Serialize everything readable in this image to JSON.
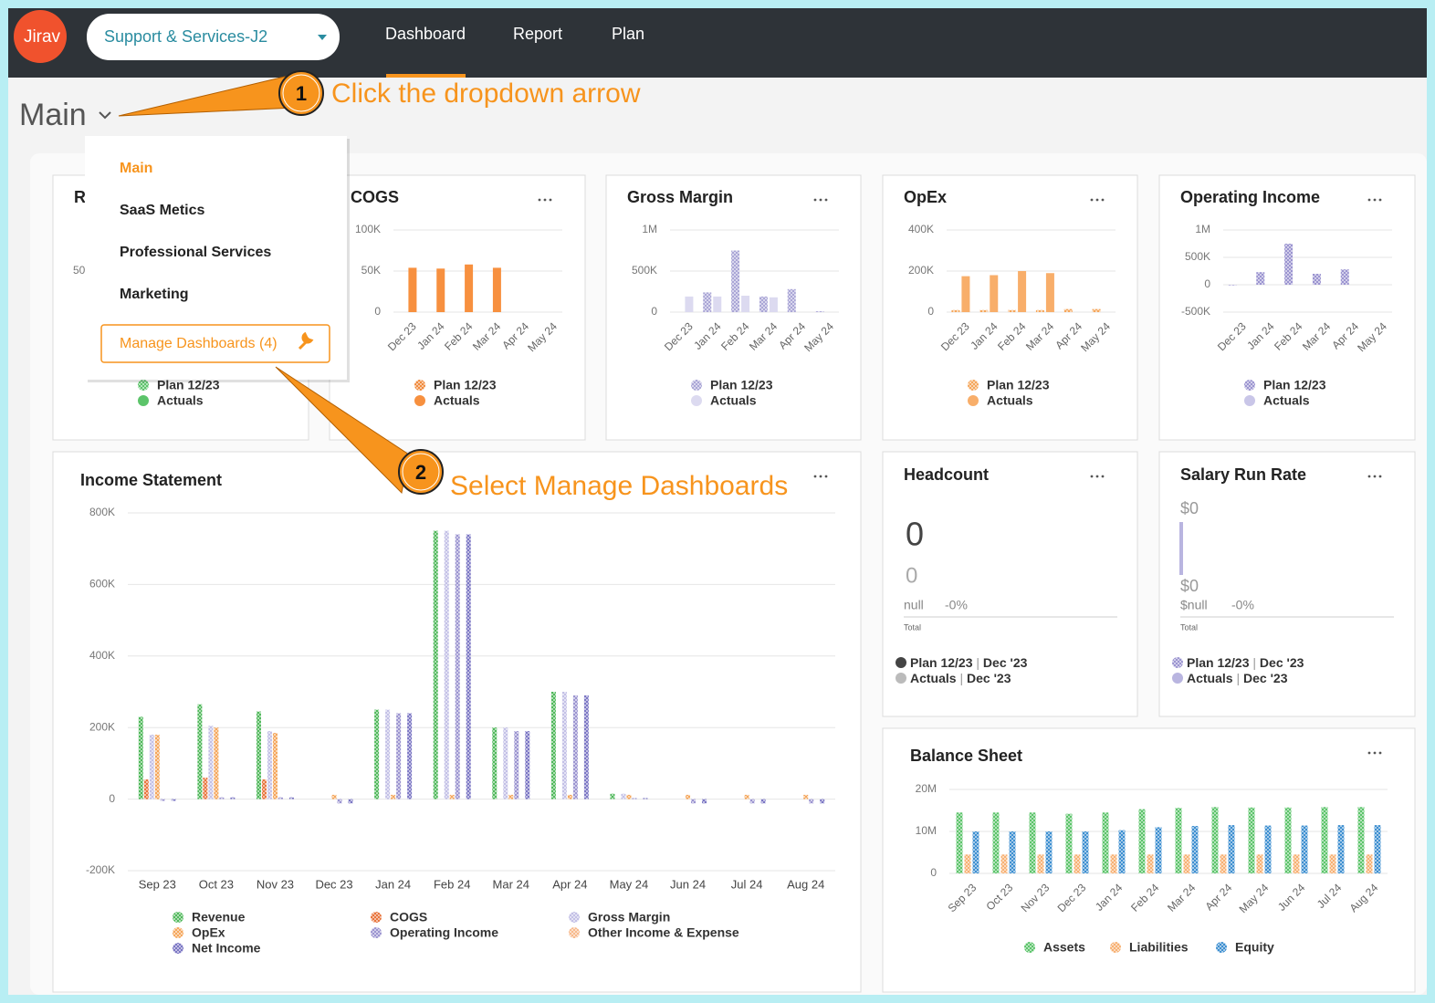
{
  "header": {
    "logo": "Jirav",
    "company": "Support & Services-J2",
    "nav": [
      "Dashboard",
      "Report",
      "Plan"
    ]
  },
  "page_title": "Main",
  "annotations": [
    {
      "number": "1",
      "text": "Click the dropdown arrow"
    },
    {
      "number": "2",
      "text": "Select Manage Dashboards"
    }
  ],
  "menu": {
    "items": [
      "Main",
      "SaaS Metics",
      "Professional Services",
      "Marketing"
    ],
    "manage": "Manage Dashboards (4)"
  },
  "revenue_card": {
    "title": "R",
    "tick": "50",
    "legend": [
      "Plan 12/23",
      "Actuals"
    ]
  },
  "headcount": {
    "title": "Headcount",
    "value": "0",
    "compare": "0",
    "prior": "null",
    "change": "-0%",
    "total": "Total",
    "separator": "|",
    "legend": [
      {
        "name": "Plan 12/23",
        "period": "Dec '23"
      },
      {
        "name": "Actuals",
        "period": "Dec '23"
      }
    ]
  },
  "salary": {
    "title": "Salary Run Rate",
    "value": "$0",
    "compare": "$0",
    "prior": "$null",
    "change": "-0%",
    "total": "Total",
    "separator": "|",
    "legend": [
      {
        "name": "Plan 12/23",
        "period": "Dec '23"
      },
      {
        "name": "Actuals",
        "period": "Dec '23"
      }
    ]
  },
  "chart_data": [
    {
      "type": "bar",
      "title": "COGS",
      "categories": [
        "Dec 23",
        "Jan 24",
        "Feb 24",
        "Mar 24",
        "Apr 24",
        "May 24"
      ],
      "series": [
        {
          "name": "Plan 12/23",
          "color": "#f08a3c",
          "pattern": "hatch",
          "values": [
            null,
            null,
            null,
            null,
            null,
            null
          ]
        },
        {
          "name": "Actuals",
          "color": "#f7903f",
          "values": [
            54000,
            53000,
            58000,
            54000,
            null,
            null
          ]
        }
      ],
      "ylim": [
        0,
        100000
      ],
      "yticks": [
        0,
        {
          "value": 50000,
          "label": "50K"
        },
        {
          "value": 100000,
          "label": "100K"
        }
      ],
      "grid": true,
      "rotate_labels": true
    },
    {
      "type": "bar",
      "title": "Gross Margin",
      "categories": [
        "Dec 23",
        "Jan 24",
        "Feb 24",
        "Mar 24",
        "Apr 24",
        "May 24"
      ],
      "series": [
        {
          "name": "Plan 12/23",
          "color": "#aaa6d6",
          "pattern": "hatch",
          "values": [
            null,
            240000,
            750000,
            190000,
            280000,
            10000
          ]
        },
        {
          "name": "Actuals",
          "color": "#dcdaf0",
          "values": [
            190000,
            190000,
            200000,
            180000,
            null,
            null
          ]
        }
      ],
      "ylim": [
        0,
        1000000
      ],
      "yticks": [
        0,
        {
          "value": 500000,
          "label": "500K"
        },
        {
          "value": 1000000,
          "label": "1M"
        }
      ],
      "grid": true,
      "rotate_labels": true
    },
    {
      "type": "bar",
      "title": "OpEx",
      "categories": [
        "Dec 23",
        "Jan 24",
        "Feb 24",
        "Mar 24",
        "Apr 24",
        "May 24"
      ],
      "series": [
        {
          "name": "Plan 12/23",
          "color": "#f5a65b",
          "pattern": "hatch",
          "values": [
            10000,
            10000,
            10000,
            10000,
            15000,
            15000
          ]
        },
        {
          "name": "Actuals",
          "color": "#f8ae6a",
          "values": [
            175000,
            180000,
            200000,
            190000,
            null,
            null
          ]
        }
      ],
      "ylim": [
        0,
        400000
      ],
      "yticks": [
        0,
        {
          "value": 200000,
          "label": "200K"
        },
        {
          "value": 400000,
          "label": "400K"
        }
      ],
      "grid": true,
      "rotate_labels": true
    },
    {
      "type": "bar",
      "title": "Operating Income",
      "categories": [
        "Dec 23",
        "Jan 24",
        "Feb 24",
        "Mar 24",
        "Apr 24",
        "May 24"
      ],
      "series": [
        {
          "name": "Plan 12/23",
          "color": "#9b94d0",
          "pattern": "hatch",
          "values": [
            -10000,
            230000,
            750000,
            200000,
            280000,
            null
          ]
        },
        {
          "name": "Actuals",
          "color": "#c9c6e8",
          "values": [
            null,
            null,
            null,
            null,
            null,
            null
          ]
        }
      ],
      "ylim": [
        -500000,
        1000000
      ],
      "yticks": [
        {
          "value": -500000,
          "label": "-500K"
        },
        0,
        {
          "value": 500000,
          "label": "500K"
        },
        {
          "value": 1000000,
          "label": "1M"
        }
      ],
      "grid": true,
      "rotate_labels": true
    },
    {
      "type": "bar",
      "title": "Income Statement",
      "categories": [
        "Sep 23",
        "Oct 23",
        "Nov 23",
        "Dec 23",
        "Jan 24",
        "Feb 24",
        "Mar 24",
        "Apr 24",
        "May 24",
        "Jun 24",
        "Jul 24",
        "Aug 24"
      ],
      "series": [
        {
          "name": "Revenue",
          "color": "#4fb85a",
          "pattern": "hatch",
          "values": [
            230000,
            265000,
            245000,
            0,
            250000,
            750000,
            200000,
            300000,
            15000,
            0,
            0,
            0
          ]
        },
        {
          "name": "COGS",
          "color": "#e8743b",
          "pattern": "hatch",
          "values": [
            55000,
            60000,
            55000,
            0,
            0,
            0,
            0,
            0,
            0,
            0,
            0,
            0
          ]
        },
        {
          "name": "Gross Margin",
          "color": "#c3c0e6",
          "pattern": "hatch",
          "values": [
            180000,
            205000,
            190000,
            0,
            250000,
            750000,
            200000,
            300000,
            15000,
            0,
            0,
            0
          ]
        },
        {
          "name": "OpEx",
          "color": "#f5a65b",
          "pattern": "hatch",
          "values": [
            180000,
            200000,
            185000,
            12000,
            12000,
            12000,
            12000,
            12000,
            12000,
            12000,
            12000,
            12000
          ]
        },
        {
          "name": "Operating Income",
          "color": "#9b94d0",
          "pattern": "hatch",
          "values": [
            -5000,
            5000,
            5000,
            -12000,
            240000,
            740000,
            190000,
            290000,
            3000,
            -12000,
            -12000,
            -12000
          ]
        },
        {
          "name": "Other Income & Expense",
          "color": "#f7b98b",
          "pattern": "hatch",
          "values": [
            0,
            0,
            0,
            0,
            0,
            0,
            0,
            0,
            0,
            0,
            0,
            0
          ]
        },
        {
          "name": "Net Income",
          "color": "#7b76c4",
          "pattern": "hatch",
          "values": [
            -5000,
            5000,
            5000,
            -12000,
            240000,
            740000,
            190000,
            290000,
            3000,
            -12000,
            -12000,
            -12000
          ]
        }
      ],
      "ylim": [
        -200000,
        800000
      ],
      "yticks": [
        {
          "value": -200000,
          "label": "-200K"
        },
        0,
        {
          "value": 200000,
          "label": "200K"
        },
        {
          "value": 400000,
          "label": "400K"
        },
        {
          "value": 600000,
          "label": "600K"
        },
        {
          "value": 800000,
          "label": "800K"
        }
      ],
      "grid": true,
      "rotate_labels": false
    },
    {
      "type": "bar",
      "title": "Balance Sheet",
      "categories": [
        "Sep 23",
        "Oct 23",
        "Nov 23",
        "Dec 23",
        "Jan 24",
        "Feb 24",
        "Mar 24",
        "Apr 24",
        "May 24",
        "Jun 24",
        "Jul 24",
        "Aug 24"
      ],
      "series": [
        {
          "name": "Assets",
          "color": "#5cc46a",
          "pattern": "hatch",
          "values": [
            14500000,
            14500000,
            14500000,
            14200000,
            14500000,
            15300000,
            15600000,
            15800000,
            15700000,
            15700000,
            15800000,
            15800000
          ]
        },
        {
          "name": "Liabilities",
          "color": "#f7b072",
          "pattern": "hatch",
          "values": [
            4500000,
            4500000,
            4500000,
            4500000,
            4500000,
            4500000,
            4500000,
            4500000,
            4500000,
            4500000,
            4500000,
            4500000
          ]
        },
        {
          "name": "Equity",
          "color": "#3d8fd0",
          "pattern": "hatch",
          "values": [
            10000000,
            10000000,
            10000000,
            10000000,
            10300000,
            11000000,
            11300000,
            11500000,
            11400000,
            11400000,
            11500000,
            11500000
          ]
        }
      ],
      "ylim": [
        0,
        20000000
      ],
      "yticks": [
        0,
        {
          "value": 10000000,
          "label": "10M"
        },
        {
          "value": 20000000,
          "label": "20M"
        }
      ],
      "grid": true,
      "rotate_labels": true
    }
  ]
}
